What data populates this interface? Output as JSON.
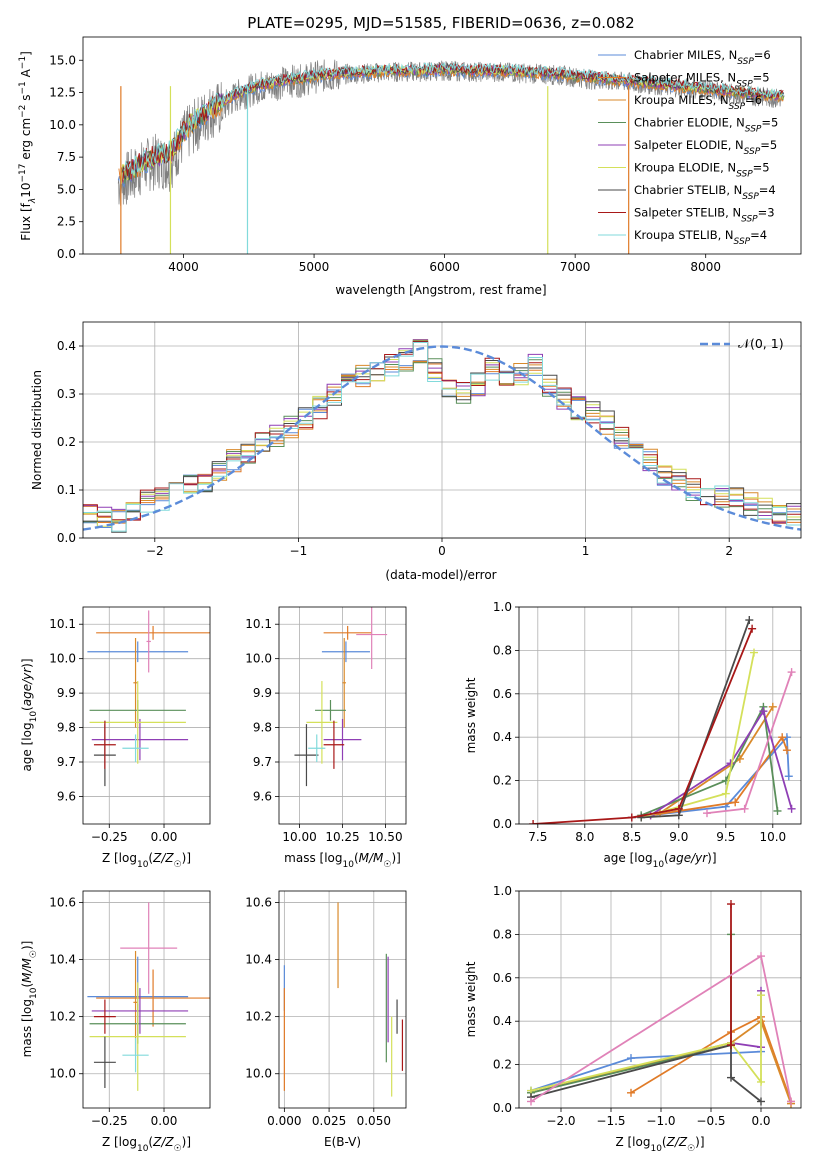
{
  "figure": {
    "title": "PLATE=0295, MJD=51585, FIBERID=0636, z=0.082"
  },
  "colors": {
    "data": "#7f7f7f",
    "gauss": "#5b8bd9",
    "grid": "#b0b0b0",
    "models": [
      "#5b8bd9",
      "#e07b28",
      "#d98a2b",
      "#5a8f5a",
      "#8f3fb5",
      "#d4e05a",
      "#4a4a4a",
      "#a81818",
      "#82dadb"
    ],
    "fit_extra": "#e082b8"
  },
  "legend": {
    "entries": [
      "Chabrier MILES, N",
      "Salpeter MILES, N",
      "Kroupa MILES, N",
      "Chabrier ELODIE, N",
      "Salpeter ELODIE, N",
      "Kroupa ELODIE, N",
      "Chabrier STELIB, N",
      "Salpeter STELIB, N",
      "Kroupa STELIB, N"
    ],
    "nssp_sub": "SSP",
    "nssp": [
      "6",
      "5",
      "6",
      "5",
      "5",
      "5",
      "4",
      "3",
      "4"
    ]
  },
  "chart_data": [
    {
      "id": "spectrum",
      "type": "line",
      "title": "PLATE=0295, MJD=51585, FIBERID=0636, z=0.082",
      "xlabel": "wavelength [Angstrom, rest frame]",
      "ylabel_parts": [
        "Flux [f",
        "λ",
        "10",
        "−17",
        " erg cm",
        "−2",
        " s",
        "−1",
        " A",
        "−1",
        "]"
      ],
      "xlim": [
        3230,
        8730
      ],
      "ylim": [
        0,
        16.8
      ],
      "xticks": [
        "4000",
        "5000",
        "6000",
        "7000",
        "8000"
      ],
      "yticks": [
        "0.0",
        "2.5",
        "5.0",
        "7.5",
        "10.0",
        "12.5",
        "15.0"
      ],
      "xtick_values": [
        4000,
        5000,
        6000,
        7000,
        8000
      ],
      "ytick_values": [
        0,
        2.5,
        5,
        7.5,
        10,
        12.5,
        15
      ],
      "grid": false,
      "legend_position": "right",
      "x": [
        3500,
        3600,
        3700,
        3800,
        3900,
        4000,
        4100,
        4200,
        4300,
        4400,
        4500,
        4600,
        4700,
        4800,
        4900,
        5000,
        5200,
        5400,
        5600,
        5800,
        6000,
        6200,
        6400,
        6600,
        6800,
        7000,
        7200,
        7400,
        7600,
        7800,
        8000,
        8200,
        8400,
        8600
      ],
      "series": [
        {
          "name": "data",
          "values": [
            5.5,
            6.0,
            6.8,
            7.2,
            7.0,
            9.0,
            10.0,
            11.0,
            11.3,
            12.2,
            12.6,
            13.0,
            13.1,
            13.4,
            13.4,
            13.7,
            13.9,
            14.0,
            14.1,
            14.1,
            14.2,
            14.1,
            14.1,
            14.0,
            13.9,
            13.7,
            13.4,
            13.3,
            13.1,
            12.9,
            12.7,
            12.4,
            12.2,
            12.0
          ]
        },
        {
          "name": "model",
          "values": [
            6.0,
            6.4,
            7.2,
            7.6,
            7.8,
            9.5,
            10.5,
            11.2,
            11.8,
            12.4,
            12.8,
            13.1,
            13.3,
            13.5,
            13.6,
            13.8,
            14.0,
            14.1,
            14.2,
            14.2,
            14.3,
            14.2,
            14.2,
            14.1,
            14.0,
            13.8,
            13.6,
            13.4,
            13.2,
            13.0,
            12.8,
            12.6,
            12.4,
            12.2
          ]
        }
      ]
    },
    {
      "id": "residuals",
      "type": "line",
      "xlabel": "(data-model)/error",
      "ylabel": "Normed distribution",
      "xlim": [
        -2.5,
        2.5
      ],
      "ylim": [
        0,
        0.45
      ],
      "xticks": [
        "−2",
        "−1",
        "0",
        "1",
        "2"
      ],
      "yticks": [
        "0.0",
        "0.1",
        "0.2",
        "0.3",
        "0.4"
      ],
      "xtick_values": [
        -2,
        -1,
        0,
        1,
        2
      ],
      "ytick_values": [
        0,
        0.1,
        0.2,
        0.3,
        0.4
      ],
      "grid": true,
      "legend": "𝒩(0, 1)",
      "legend_position": "top-right",
      "x": [
        -2.5,
        -2.4,
        -2.3,
        -2.2,
        -2.1,
        -2.0,
        -1.9,
        -1.8,
        -1.7,
        -1.6,
        -1.5,
        -1.4,
        -1.3,
        -1.2,
        -1.1,
        -1.0,
        -0.9,
        -0.8,
        -0.7,
        -0.6,
        -0.5,
        -0.4,
        -0.3,
        -0.2,
        -0.1,
        0.0,
        0.1,
        0.2,
        0.3,
        0.4,
        0.5,
        0.6,
        0.7,
        0.8,
        0.9,
        1.0,
        1.1,
        1.2,
        1.3,
        1.4,
        1.5,
        1.6,
        1.7,
        1.8,
        1.9,
        2.0,
        2.1,
        2.2,
        2.3,
        2.4,
        2.5
      ],
      "histogram": [
        0.045,
        0.04,
        0.035,
        0.06,
        0.075,
        0.08,
        0.1,
        0.11,
        0.12,
        0.14,
        0.16,
        0.18,
        0.2,
        0.21,
        0.23,
        0.25,
        0.27,
        0.3,
        0.32,
        0.34,
        0.35,
        0.36,
        0.37,
        0.39,
        0.35,
        0.31,
        0.3,
        0.32,
        0.35,
        0.33,
        0.34,
        0.36,
        0.32,
        0.29,
        0.27,
        0.26,
        0.24,
        0.21,
        0.19,
        0.16,
        0.13,
        0.12,
        0.1,
        0.09,
        0.085,
        0.08,
        0.07,
        0.06,
        0.055,
        0.05
      ],
      "gaussian": {
        "mean": 0,
        "sigma": 1
      }
    },
    {
      "id": "age-vs-Z",
      "type": "scatter",
      "xlabel": "Z [log",
      "ylabel": "age  [log",
      "xlim": [
        -0.37,
        0.21
      ],
      "ylim": [
        9.52,
        10.15
      ],
      "xticks": [
        "−0.25",
        "0.00"
      ],
      "xtick_values": [
        -0.25,
        0.0
      ],
      "yticks": [
        "9.6",
        "9.7",
        "9.8",
        "9.9",
        "10.0",
        "10.1"
      ],
      "ytick_values": [
        9.6,
        9.7,
        9.8,
        9.9,
        10.0,
        10.1
      ],
      "grid": true,
      "points": [
        {
          "x": -0.12,
          "y": 10.02,
          "xerr": 0.23,
          "yerr": 0.03
        },
        {
          "x": -0.05,
          "y": 10.075,
          "xerr": 0.26,
          "yerr": 0.02
        },
        {
          "x": -0.13,
          "y": 9.93,
          "xerr": 0.01,
          "yerr": 0.13
        },
        {
          "x": -0.12,
          "y": 9.85,
          "xerr": 0.22,
          "yerr": 0.03
        },
        {
          "x": -0.11,
          "y": 9.765,
          "xerr": 0.22,
          "yerr": 0.06
        },
        {
          "x": -0.12,
          "y": 9.815,
          "xerr": 0.22,
          "yerr": 0.12
        },
        {
          "x": -0.27,
          "y": 9.72,
          "xerr": 0.05,
          "yerr": 0.09
        },
        {
          "x": -0.27,
          "y": 9.75,
          "xerr": 0.05,
          "yerr": 0.07
        },
        {
          "x": -0.13,
          "y": 9.74,
          "xerr": 0.06,
          "yerr": 0.04
        },
        {
          "x": -0.07,
          "y": 10.05,
          "xerr": 0.01,
          "yerr": 0.09
        }
      ]
    },
    {
      "id": "age-vs-mass",
      "type": "scatter",
      "xlabel": "mass [log",
      "xlim": [
        9.88,
        10.62
      ],
      "ylim": [
        9.52,
        10.15
      ],
      "xticks": [
        "10.00",
        "10.25",
        "10.50"
      ],
      "xtick_values": [
        10.0,
        10.25,
        10.5
      ],
      "yticks": [
        "9.6",
        "9.7",
        "9.8",
        "9.9",
        "10.0",
        "10.1"
      ],
      "ytick_values": [
        9.6,
        9.7,
        9.8,
        9.9,
        10.0,
        10.1
      ],
      "grid": true,
      "points": [
        {
          "x": 10.27,
          "y": 10.02,
          "xerr": 0.14,
          "yerr": 0.03
        },
        {
          "x": 10.28,
          "y": 10.075,
          "xerr": 0.14,
          "yerr": 0.02
        },
        {
          "x": 10.26,
          "y": 9.93,
          "xerr": 0.01,
          "yerr": 0.13
        },
        {
          "x": 10.18,
          "y": 9.85,
          "xerr": 0.09,
          "yerr": 0.03
        },
        {
          "x": 10.25,
          "y": 9.765,
          "xerr": 0.11,
          "yerr": 0.06
        },
        {
          "x": 10.13,
          "y": 9.815,
          "xerr": 0.09,
          "yerr": 0.12
        },
        {
          "x": 10.04,
          "y": 9.72,
          "xerr": 0.07,
          "yerr": 0.09
        },
        {
          "x": 10.2,
          "y": 9.75,
          "xerr": 0.06,
          "yerr": 0.07
        },
        {
          "x": 10.1,
          "y": 9.74,
          "xerr": 0.05,
          "yerr": 0.04
        },
        {
          "x": 10.42,
          "y": 10.07,
          "xerr": 0.09,
          "yerr": 0.1
        }
      ]
    },
    {
      "id": "massweight-vs-age",
      "type": "line",
      "xlabel": "age  [log",
      "ylabel": "mass weight",
      "xlim": [
        7.3,
        10.3
      ],
      "ylim": [
        0,
        1.0
      ],
      "xticks": [
        "7.5",
        "8.0",
        "8.5",
        "9.0",
        "9.5",
        "10.0"
      ],
      "xtick_values": [
        7.5,
        8.0,
        8.5,
        9.0,
        9.5,
        10.0
      ],
      "yticks": [
        "0.0",
        "0.2",
        "0.4",
        "0.6",
        "0.8",
        "1.0"
      ],
      "ytick_values": [
        0,
        0.2,
        0.4,
        0.6,
        0.8,
        1.0
      ],
      "grid": true,
      "series": [
        {
          "x": [
            8.5,
            9.5,
            10.15,
            10.17
          ],
          "values": [
            0.03,
            0.08,
            0.4,
            0.22
          ]
        },
        {
          "x": [
            8.7,
            9.6,
            10.1,
            10.15
          ],
          "values": [
            0.04,
            0.1,
            0.4,
            0.34
          ]
        },
        {
          "x": [
            8.8,
            9.65,
            10.0
          ],
          "values": [
            0.05,
            0.3,
            0.54
          ]
        },
        {
          "x": [
            8.6,
            9.5,
            9.9,
            10.05
          ],
          "values": [
            0.04,
            0.2,
            0.54,
            0.06
          ]
        },
        {
          "x": [
            8.7,
            9.55,
            9.9,
            10.2
          ],
          "values": [
            0.04,
            0.28,
            0.52,
            0.07
          ]
        },
        {
          "x": [
            8.6,
            9.5,
            9.8
          ],
          "values": [
            0.03,
            0.14,
            0.79
          ]
        },
        {
          "x": [
            8.6,
            9.0,
            9.75
          ],
          "values": [
            0.03,
            0.04,
            0.94
          ]
        },
        {
          "x": [
            7.45,
            8.5,
            9.0,
            9.78
          ],
          "values": [
            0.0,
            0.03,
            0.07,
            0.9
          ]
        },
        {
          "x": [
            9.3,
            9.7,
            10.2
          ],
          "values": [
            0.05,
            0.07,
            0.7
          ]
        }
      ]
    },
    {
      "id": "mass-vs-Z",
      "type": "scatter",
      "xlabel": "Z [log",
      "ylabel": "mass [log",
      "xlim": [
        -0.37,
        0.21
      ],
      "ylim": [
        9.88,
        10.64
      ],
      "xticks": [
        "−0.25",
        "0.00"
      ],
      "xtick_values": [
        -0.25,
        0.0
      ],
      "yticks": [
        "10.0",
        "10.2",
        "10.4",
        "10.6"
      ],
      "ytick_values": [
        10.0,
        10.2,
        10.4,
        10.6
      ],
      "grid": true,
      "points": [
        {
          "x": -0.12,
          "y": 10.27,
          "xerr": 0.23,
          "yerr": 0.14
        },
        {
          "x": -0.05,
          "y": 10.265,
          "xerr": 0.26,
          "yerr": 0.1
        },
        {
          "x": -0.13,
          "y": 10.25,
          "xerr": 0.01,
          "yerr": 0.18
        },
        {
          "x": -0.12,
          "y": 10.175,
          "xerr": 0.22,
          "yerr": 0.07
        },
        {
          "x": -0.11,
          "y": 10.22,
          "xerr": 0.22,
          "yerr": 0.08
        },
        {
          "x": -0.12,
          "y": 10.13,
          "xerr": 0.22,
          "yerr": 0.19
        },
        {
          "x": -0.27,
          "y": 10.04,
          "xerr": 0.05,
          "yerr": 0.09
        },
        {
          "x": -0.27,
          "y": 10.2,
          "xerr": 0.05,
          "yerr": 0.06
        },
        {
          "x": -0.13,
          "y": 10.065,
          "xerr": 0.06,
          "yerr": 0.06
        },
        {
          "x": -0.07,
          "y": 10.44,
          "xerr": 0.13,
          "yerr": 0.16
        }
      ]
    },
    {
      "id": "mass-vs-ebv",
      "type": "scatter",
      "xlabel": "E(B-V)",
      "xlim": [
        -0.003,
        0.068
      ],
      "ylim": [
        9.88,
        10.64
      ],
      "xticks": [
        "0.000",
        "0.025",
        "0.050"
      ],
      "xtick_values": [
        0.0,
        0.025,
        0.05
      ],
      "yticks": [
        "10.0",
        "10.2",
        "10.4",
        "10.6"
      ],
      "ytick_values": [
        10.0,
        10.2,
        10.4,
        10.6
      ],
      "grid": true,
      "points": [
        {
          "x": 0.0,
          "y": 10.3,
          "xerr": 0.0,
          "yerr": 0.08
        },
        {
          "x": 0.0,
          "y": 10.12,
          "xerr": 0.0,
          "yerr": 0.18
        },
        {
          "x": 0.03,
          "y": 10.45,
          "xerr": 0.0,
          "yerr": 0.15
        },
        {
          "x": 0.057,
          "y": 10.23,
          "xerr": 0.0,
          "yerr": 0.19
        },
        {
          "x": 0.058,
          "y": 10.26,
          "xerr": 0.0,
          "yerr": 0.15
        },
        {
          "x": 0.06,
          "y": 10.06,
          "xerr": 0.0,
          "yerr": 0.14
        },
        {
          "x": 0.063,
          "y": 10.2,
          "xerr": 0.0,
          "yerr": 0.06
        },
        {
          "x": 0.066,
          "y": 10.1,
          "xerr": 0.0,
          "yerr": 0.09
        }
      ]
    },
    {
      "id": "massweight-vs-Z",
      "type": "line",
      "xlabel": "Z [log",
      "ylabel": "mass weight",
      "xlim": [
        -2.42,
        0.4
      ],
      "ylim": [
        0,
        1.0
      ],
      "xticks": [
        "−2.0",
        "−1.5",
        "−1.0",
        "−0.5",
        "0.0"
      ],
      "xtick_values": [
        -2.0,
        -1.5,
        -1.0,
        -0.5,
        0.0
      ],
      "yticks": [
        "0.0",
        "0.2",
        "0.4",
        "0.6",
        "0.8",
        "1.0"
      ],
      "ytick_values": [
        0,
        0.2,
        0.4,
        0.6,
        0.8,
        1.0
      ],
      "grid": true,
      "series": [
        {
          "x": [
            -2.3,
            -1.3,
            0.0
          ],
          "values": [
            0.08,
            0.23,
            0.26
          ]
        },
        {
          "x": [
            -1.3,
            -0.3,
            0.0,
            0.3
          ],
          "values": [
            0.07,
            0.35,
            0.42,
            0.03
          ]
        },
        {
          "x": [
            -2.3,
            -0.3,
            0.0,
            0.3
          ],
          "values": [
            0.07,
            0.3,
            0.4,
            0.02
          ]
        },
        {
          "x": [
            -2.3,
            -0.3,
            -0.3
          ],
          "values": [
            0.07,
            0.29,
            0.8
          ]
        },
        {
          "x": [
            -0.3,
            0.0,
            0.0
          ],
          "values": [
            0.3,
            0.28,
            0.54
          ]
        },
        {
          "x": [
            -2.3,
            -0.3,
            0.0,
            0.0
          ],
          "values": [
            0.08,
            0.3,
            0.12,
            0.52
          ]
        },
        {
          "x": [
            -2.3,
            -0.3,
            -0.3,
            0.0
          ],
          "values": [
            0.05,
            0.29,
            0.14,
            0.03
          ]
        },
        {
          "x": [
            -0.3,
            -0.3
          ],
          "values": [
            0.29,
            0.94
          ]
        },
        {
          "x": [
            -2.3,
            0.0,
            0.3
          ],
          "values": [
            0.03,
            0.7,
            0.03
          ]
        }
      ]
    }
  ]
}
